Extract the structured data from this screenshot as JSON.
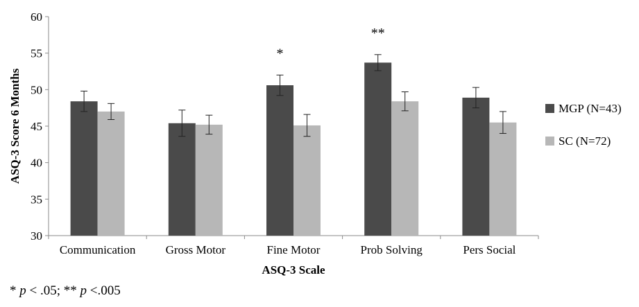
{
  "chart_data": {
    "type": "bar",
    "categories": [
      "Communication",
      "Gross Motor",
      "Fine Motor",
      "Prob Solving",
      "Pers Social"
    ],
    "series": [
      {
        "name": "MGP (N=43)",
        "color": "#4a4a4a",
        "values": [
          48.4,
          45.4,
          50.6,
          53.7,
          48.9
        ],
        "error": [
          1.4,
          1.8,
          1.4,
          1.1,
          1.4
        ]
      },
      {
        "name": "SC (N=72)",
        "color": "#b7b7b7",
        "values": [
          47.0,
          45.2,
          45.1,
          48.4,
          45.5
        ],
        "error": [
          1.1,
          1.3,
          1.5,
          1.3,
          1.5
        ]
      }
    ],
    "annotations": [
      {
        "category": "Fine Motor",
        "text": "*"
      },
      {
        "category": "Prob Solving",
        "text": "**"
      }
    ],
    "ylabel": "ASQ-3 Score 6 Months",
    "xlabel": "ASQ-3 Scale",
    "ylim": [
      30,
      60
    ],
    "yticks": [
      30,
      35,
      40,
      45,
      50,
      55,
      60
    ],
    "legend": "right",
    "grid": false
  },
  "footnote": {
    "star1": "* ",
    "p1": "p",
    "t1": " < .05; ** ",
    "p2": "p",
    "t2": " <.005"
  }
}
